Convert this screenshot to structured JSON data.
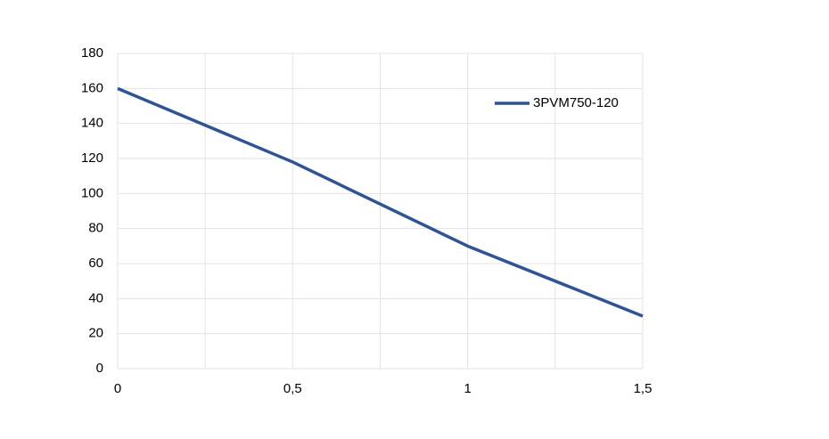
{
  "chart_data": {
    "type": "line",
    "x": [
      0,
      0.5,
      1,
      1.5
    ],
    "series": [
      {
        "name": "3PVM750-120",
        "color": "#2f5496",
        "values": [
          160,
          118,
          70,
          30
        ]
      }
    ],
    "xlim": [
      0,
      1.5
    ],
    "xticks": [
      0,
      {
        "value": 0.5,
        "label": "0,5"
      },
      1,
      {
        "value": 1.5,
        "label": "1,5"
      }
    ],
    "ylim": [
      0,
      180
    ],
    "yticks": [
      0,
      20,
      40,
      60,
      80,
      100,
      120,
      140,
      160,
      180
    ],
    "grid": true,
    "legend": "upper right"
  }
}
